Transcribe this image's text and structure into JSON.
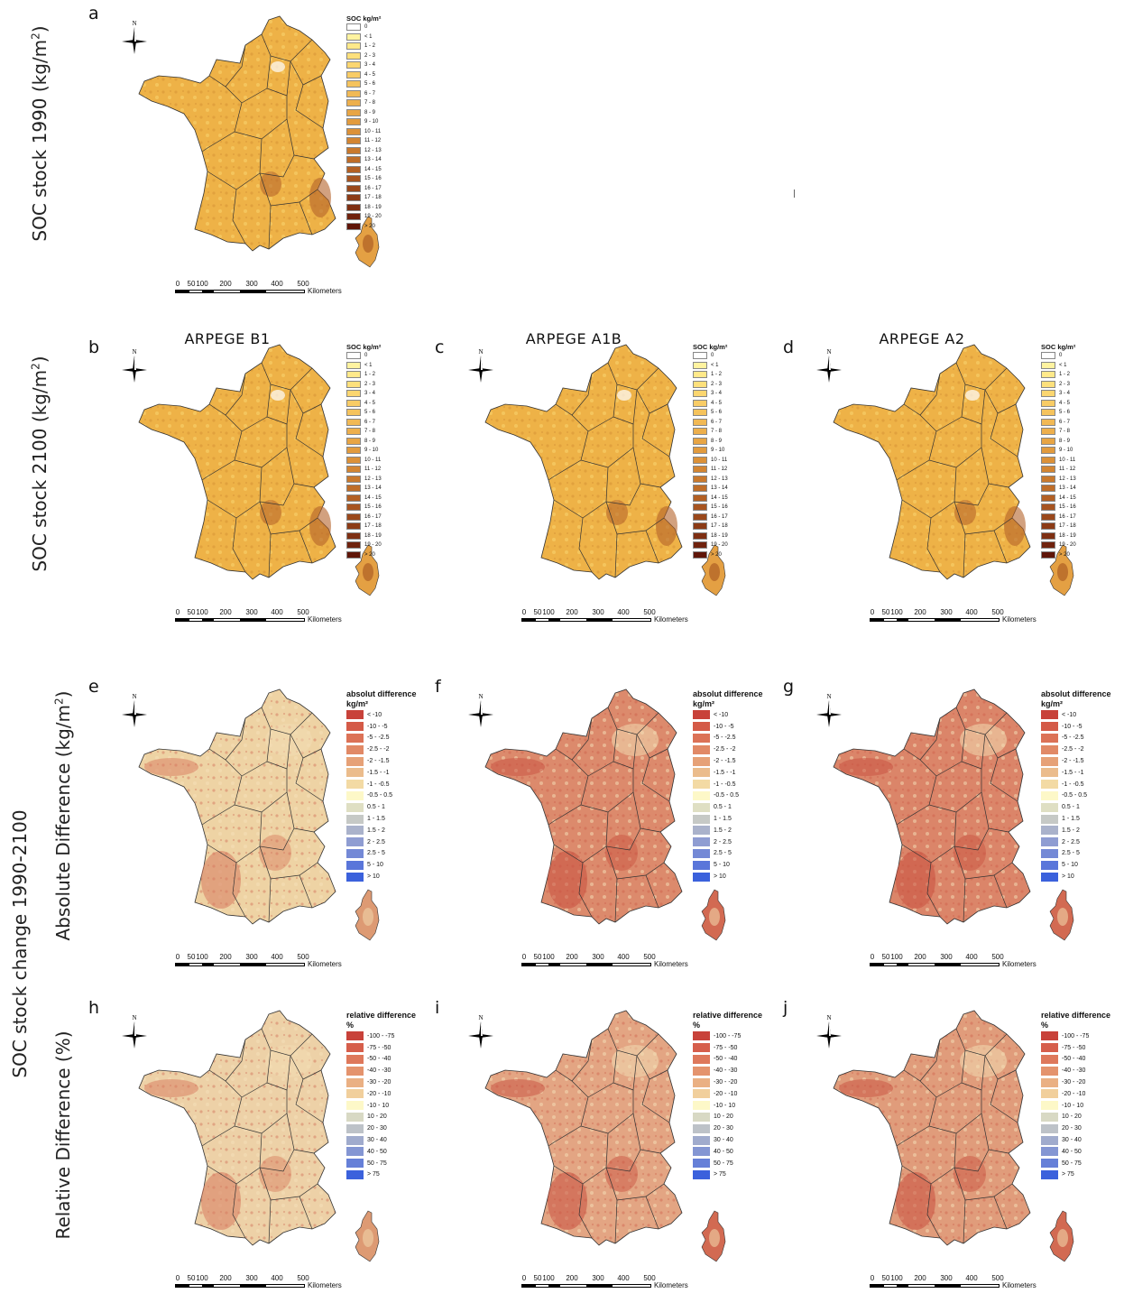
{
  "row_labels": {
    "soc1990": "SOC stock 1990 (kg/m",
    "soc2100": "SOC stock 2100 (kg/m",
    "superscript": "2",
    "close": ")",
    "change": "SOC stock change 1990-2100",
    "abs": "Absolute Difference  (kg/m",
    "rel": "Relative Difference (%)"
  },
  "column_titles": [
    "ARPEGE B1",
    "ARPEGE A1B",
    "ARPEGE A2"
  ],
  "panels": [
    {
      "letter": "a",
      "type": "soc"
    },
    {
      "letter": "b",
      "type": "soc"
    },
    {
      "letter": "c",
      "type": "soc"
    },
    {
      "letter": "d",
      "type": "soc"
    },
    {
      "letter": "e",
      "type": "abs"
    },
    {
      "letter": "f",
      "type": "abs"
    },
    {
      "letter": "g",
      "type": "abs"
    },
    {
      "letter": "h",
      "type": "rel"
    },
    {
      "letter": "i",
      "type": "rel"
    },
    {
      "letter": "j",
      "type": "rel"
    }
  ],
  "compass_label": "N",
  "legends": {
    "soc": {
      "title": "SOC kg/m²",
      "classes": [
        "0",
        "< 1",
        "1 - 2",
        "2 - 3",
        "3 - 4",
        "4 - 5",
        "5 - 6",
        "6 - 7",
        "7 - 8",
        "8 - 9",
        "9 - 10",
        "10 - 11",
        "11 - 12",
        "12 - 13",
        "13 - 14",
        "14 - 15",
        "15 - 16",
        "16 - 17",
        "17 - 18",
        "18 - 19",
        "19 - 20",
        "> 20"
      ],
      "colors": [
        "#ffffff",
        "#fff3a0",
        "#ffe98a",
        "#fde07c",
        "#fbd670",
        "#f8cc66",
        "#f5c35d",
        "#f1b955",
        "#edaf4c",
        "#e8a544",
        "#e29b3e",
        "#dc9138",
        "#d38532",
        "#c9792d",
        "#bf6d28",
        "#b36024",
        "#a75420",
        "#9a481b",
        "#8c3b16",
        "#7e2f12",
        "#6f220d",
        "#5f1508"
      ]
    },
    "abs": {
      "title": "absolut difference",
      "unit": "kg/m²",
      "classes": [
        "< -10",
        "-10 - -5",
        "-5 - -2.5",
        "-2.5 - -2",
        "-2 - -1.5",
        "-1.5 - -1",
        "-1 - -0.5",
        "-0.5 - 0.5",
        "0.5 - 1",
        "1 - 1.5",
        "1.5 - 2",
        "2 - 2.5",
        "2.5 - 5",
        "5 - 10",
        "> 10"
      ],
      "colors": [
        "#c8423a",
        "#d45a47",
        "#dc7257",
        "#e18966",
        "#e6a177",
        "#ebbc8c",
        "#f3daa4",
        "#fdf8c8",
        "#dfdfc3",
        "#c6c9c6",
        "#aab2cb",
        "#8f9dd2",
        "#7489d6",
        "#5a76da",
        "#3b61dc"
      ]
    },
    "rel": {
      "title": "relative difference",
      "unit": "%",
      "classes": [
        "-100 - -75",
        "-75 - -50",
        "-50 - -40",
        "-40 - -30",
        "-30 - -20",
        "-20 - -10",
        "-10 - 10",
        "10 - 20",
        "20 - 30",
        "30 - 40",
        "40 - 50",
        "50 - 75",
        "> 75"
      ],
      "colors": [
        "#c8423a",
        "#d65e4b",
        "#de785b",
        "#e4936d",
        "#eab083",
        "#f1cf9c",
        "#fdf8c8",
        "#d8d9c4",
        "#bdc2c8",
        "#a0abcd",
        "#8496d3",
        "#6680d8",
        "#3b61dc"
      ]
    }
  },
  "scalebar": {
    "ticks": [
      "0",
      "50",
      "100",
      "200",
      "300",
      "400",
      "500"
    ],
    "unit": "Kilometers"
  },
  "map_colors": {
    "soc": "#eeb247",
    "abs": [
      "#eed3a4",
      "#dc8a6c",
      "#db8569"
    ],
    "rel": [
      "#edd1a7",
      "#e3a583",
      "#e09c7b"
    ]
  }
}
